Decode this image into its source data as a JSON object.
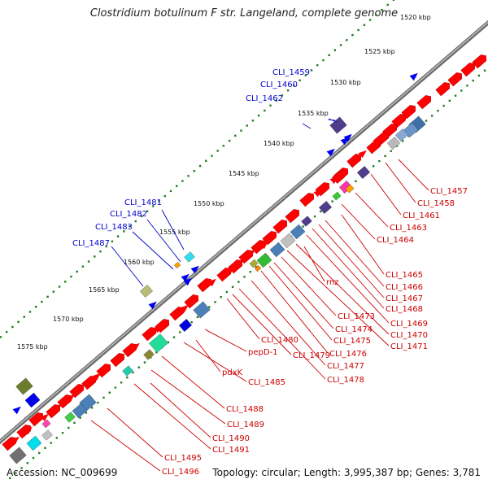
{
  "title": "Clostridium botulinum F str. Langeland, complete genome",
  "footer": {
    "accession": "Accession: NC_009699",
    "summary": "Topology: circular; Length: 3,995,387 bp; Genes: 3,781"
  },
  "colors": {
    "backbone": "#7d7d7d",
    "tick": "#1e7d1e",
    "forward_label": "#0000cc",
    "reverse_label": "#cc0000",
    "gene_red": "#ff0000",
    "gene_blue": "#0000ee"
  },
  "scale_labels": [
    "1520 kbp",
    "1525 kbp",
    "1530 kbp",
    "1535 kbp",
    "1540 kbp",
    "1545 kbp",
    "1550 kbp",
    "1555 kbp",
    "1560 kbp",
    "1565 kbp",
    "1570 kbp",
    "1575 kbp"
  ],
  "forward_labels": [
    "CLI_1459",
    "CLI_1460",
    "CLI_1462",
    "CLI_1481",
    "CLI_1482",
    "CLI_1483",
    "CLI_1487"
  ],
  "reverse_labels": [
    "CLI_1457",
    "CLI_1458",
    "CLI_1461",
    "CLI_1463",
    "CLI_1464",
    "CLI_1465",
    "CLI_1466",
    "rnz",
    "CLI_1467",
    "CLI_1468",
    "CLI_1469",
    "CLI_1470",
    "CLI_1471",
    "CLI_1473",
    "CLI_1474",
    "CLI_1475",
    "CLI_1476",
    "CLI_1477",
    "CLI_1478",
    "CLI_1480",
    "CLI_1479",
    "pepD-1",
    "pdxK",
    "CLI_1485",
    "CLI_1488",
    "CLI_1489",
    "CLI_1490",
    "CLI_1491",
    "CLI_1495",
    "CLI_1496"
  ]
}
